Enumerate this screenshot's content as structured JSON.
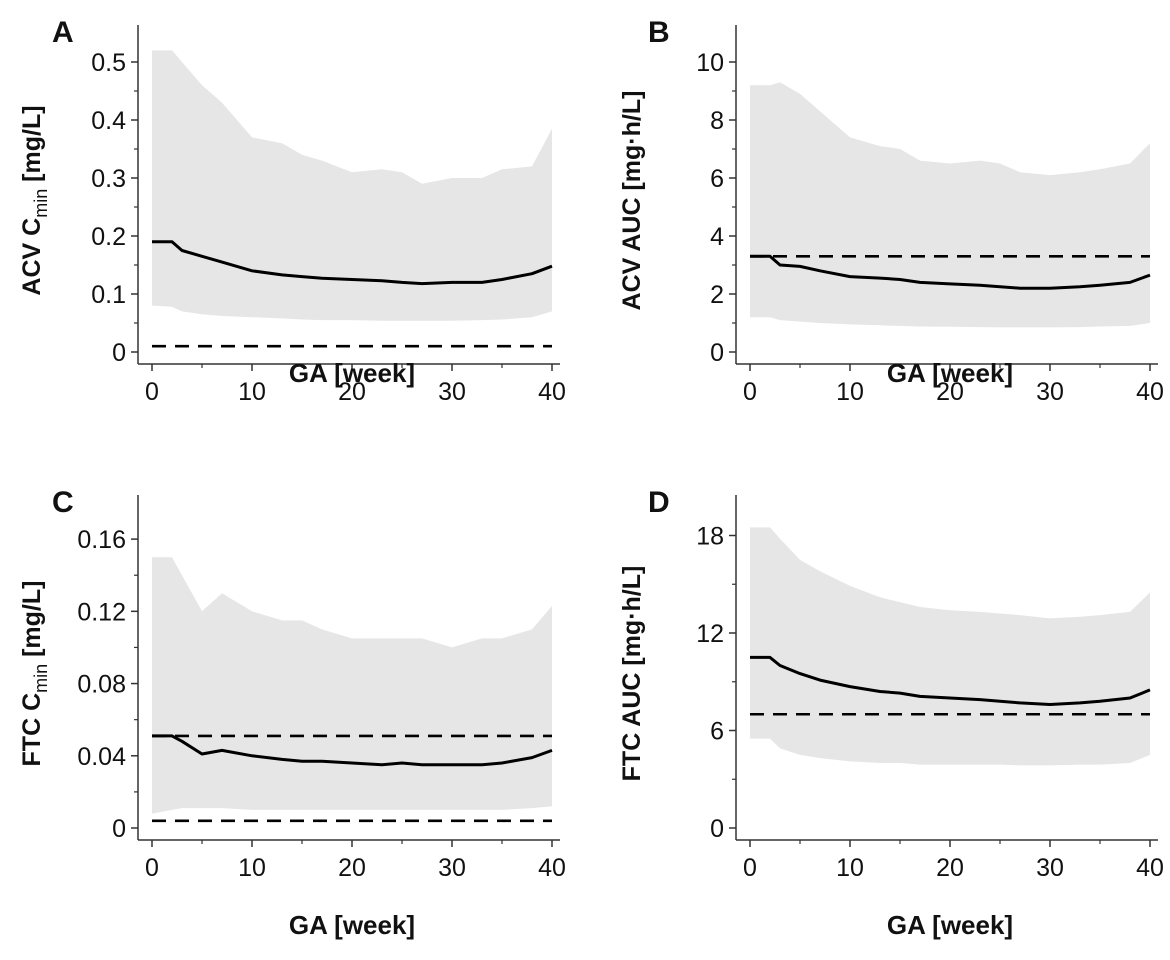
{
  "colors": {
    "band": "#e6e6e6",
    "median": "#000000",
    "reference": "#000000",
    "axis": "#333333"
  },
  "chart_data": [
    {
      "panel": "A",
      "type": "line",
      "ylabel": {
        "prefix": "ACV C",
        "sub": "min",
        "suffix": " [mg/L]"
      },
      "xlabel": "GA [week]",
      "xlim": [
        0,
        40
      ],
      "ylim": [
        0,
        0.55
      ],
      "xticks": [
        0,
        10,
        20,
        30,
        40
      ],
      "yticks": [
        0,
        0.1,
        0.2,
        0.3,
        0.4,
        0.5
      ],
      "yticklabels": [
        "0",
        "0.1",
        "0.2",
        "0.3",
        "0.4",
        "0.5"
      ],
      "x": [
        0,
        2,
        3,
        5,
        7,
        10,
        13,
        15,
        17,
        20,
        23,
        25,
        27,
        30,
        33,
        35,
        38,
        40
      ],
      "series": [
        {
          "role": "median",
          "values": [
            0.19,
            0.19,
            0.175,
            0.165,
            0.155,
            0.14,
            0.133,
            0.13,
            0.127,
            0.125,
            0.123,
            0.12,
            0.118,
            0.12,
            0.12,
            0.125,
            0.135,
            0.148
          ]
        },
        {
          "role": "band-upper",
          "values": [
            0.52,
            0.52,
            0.5,
            0.46,
            0.43,
            0.37,
            0.36,
            0.34,
            0.33,
            0.31,
            0.315,
            0.31,
            0.29,
            0.3,
            0.3,
            0.315,
            0.32,
            0.385
          ]
        },
        {
          "role": "band-lower",
          "values": [
            0.08,
            0.078,
            0.07,
            0.065,
            0.062,
            0.06,
            0.058,
            0.056,
            0.055,
            0.055,
            0.054,
            0.054,
            0.054,
            0.054,
            0.055,
            0.056,
            0.06,
            0.07
          ]
        }
      ],
      "reference_lines": [
        0.01
      ]
    },
    {
      "panel": "B",
      "type": "line",
      "ylabel": {
        "prefix": "ACV AUC [mg",
        "sub": "",
        "suffix": "·h/L]"
      },
      "xlabel": "GA [week]",
      "xlim": [
        0,
        40
      ],
      "ylim": [
        0,
        11
      ],
      "xticks": [
        0,
        10,
        20,
        30,
        40
      ],
      "yticks": [
        0,
        2,
        4,
        6,
        8,
        10
      ],
      "yticklabels": [
        "0",
        "2",
        "4",
        "6",
        "8",
        "10"
      ],
      "x": [
        0,
        2,
        3,
        5,
        7,
        10,
        13,
        15,
        17,
        20,
        23,
        25,
        27,
        30,
        33,
        35,
        38,
        40
      ],
      "series": [
        {
          "role": "median",
          "values": [
            3.3,
            3.3,
            3.0,
            2.95,
            2.8,
            2.6,
            2.55,
            2.5,
            2.4,
            2.35,
            2.3,
            2.25,
            2.2,
            2.2,
            2.25,
            2.3,
            2.4,
            2.65
          ]
        },
        {
          "role": "band-upper",
          "values": [
            9.2,
            9.2,
            9.3,
            8.9,
            8.3,
            7.4,
            7.1,
            7.0,
            6.6,
            6.5,
            6.6,
            6.5,
            6.2,
            6.1,
            6.2,
            6.3,
            6.5,
            7.2
          ]
        },
        {
          "role": "band-lower",
          "values": [
            1.2,
            1.2,
            1.1,
            1.05,
            1.0,
            0.95,
            0.92,
            0.9,
            0.88,
            0.87,
            0.86,
            0.85,
            0.85,
            0.85,
            0.86,
            0.88,
            0.9,
            1.0
          ]
        }
      ],
      "reference_lines": [
        3.3
      ]
    },
    {
      "panel": "C",
      "type": "line",
      "ylabel": {
        "prefix": "FTC C",
        "sub": "min",
        "suffix": " [mg/L]"
      },
      "xlabel": "GA [week]",
      "xlim": [
        0,
        40
      ],
      "ylim": [
        0,
        0.18
      ],
      "xticks": [
        0,
        10,
        20,
        30,
        40
      ],
      "yticks": [
        0,
        0.04,
        0.08,
        0.12,
        0.16
      ],
      "yticklabels": [
        "0",
        "0.04",
        "0.08",
        "0.12",
        "0.16"
      ],
      "x": [
        0,
        2,
        3,
        5,
        7,
        10,
        13,
        15,
        17,
        20,
        23,
        25,
        27,
        30,
        33,
        35,
        38,
        40
      ],
      "series": [
        {
          "role": "median",
          "values": [
            0.051,
            0.051,
            0.048,
            0.041,
            0.043,
            0.04,
            0.038,
            0.037,
            0.037,
            0.036,
            0.035,
            0.036,
            0.035,
            0.035,
            0.035,
            0.036,
            0.039,
            0.043
          ]
        },
        {
          "role": "band-upper",
          "values": [
            0.15,
            0.15,
            0.14,
            0.12,
            0.13,
            0.12,
            0.115,
            0.115,
            0.11,
            0.105,
            0.105,
            0.105,
            0.105,
            0.1,
            0.105,
            0.105,
            0.11,
            0.123
          ]
        },
        {
          "role": "band-lower",
          "values": [
            0.008,
            0.01,
            0.011,
            0.011,
            0.011,
            0.01,
            0.01,
            0.01,
            0.01,
            0.01,
            0.01,
            0.01,
            0.01,
            0.01,
            0.01,
            0.01,
            0.011,
            0.012
          ]
        }
      ],
      "reference_lines": [
        0.051,
        0.004
      ]
    },
    {
      "panel": "D",
      "type": "line",
      "ylabel": {
        "prefix": "FTC AUC [mg",
        "sub": "",
        "suffix": "·h/L]"
      },
      "xlabel": "GA [week]",
      "xlim": [
        0,
        40
      ],
      "ylim": [
        0,
        20
      ],
      "xticks": [
        0,
        10,
        20,
        30,
        40
      ],
      "yticks": [
        0,
        6,
        12,
        18
      ],
      "yticklabels": [
        "0",
        "6",
        "12",
        "18"
      ],
      "x": [
        0,
        2,
        3,
        5,
        7,
        10,
        13,
        15,
        17,
        20,
        23,
        25,
        27,
        30,
        33,
        35,
        38,
        40
      ],
      "series": [
        {
          "role": "median",
          "values": [
            10.5,
            10.5,
            10.0,
            9.5,
            9.1,
            8.7,
            8.4,
            8.3,
            8.1,
            8.0,
            7.9,
            7.8,
            7.7,
            7.6,
            7.7,
            7.8,
            8.0,
            8.5
          ]
        },
        {
          "role": "band-upper",
          "values": [
            18.5,
            18.5,
            17.8,
            16.5,
            15.8,
            14.9,
            14.2,
            13.9,
            13.6,
            13.4,
            13.3,
            13.2,
            13.1,
            12.9,
            13.0,
            13.1,
            13.3,
            14.5
          ]
        },
        {
          "role": "band-lower",
          "values": [
            5.5,
            5.5,
            4.9,
            4.5,
            4.3,
            4.1,
            4.0,
            4.0,
            3.9,
            3.9,
            3.9,
            3.9,
            3.85,
            3.85,
            3.9,
            3.9,
            4.0,
            4.5
          ]
        }
      ],
      "reference_lines": [
        7.0
      ]
    }
  ]
}
